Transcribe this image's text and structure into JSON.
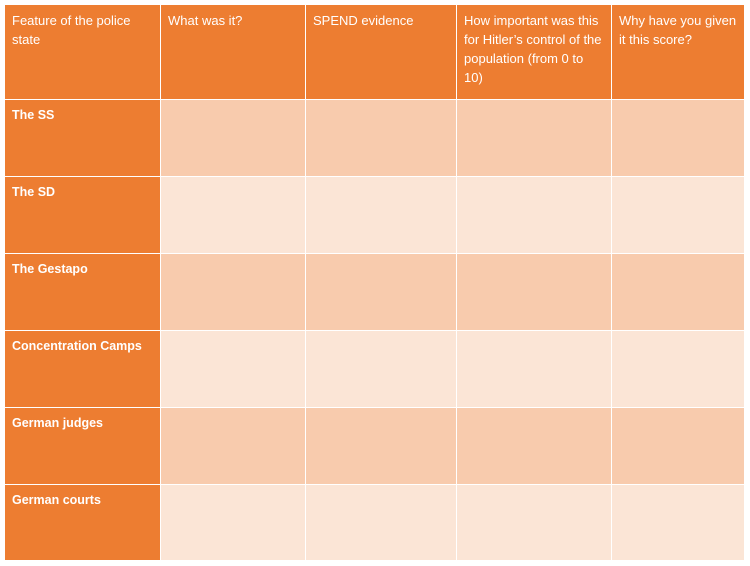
{
  "table": {
    "columns": [
      "Feature of the police state",
      "What was it?",
      "SPEND evidence",
      "How important was this for Hitler’s control of the population (from 0 to 10)",
      "Why have you given it this score?"
    ],
    "rows": [
      "The SS",
      "The SD",
      "The Gestapo",
      "Concentration Camps",
      "German judges",
      "German courts"
    ]
  }
}
